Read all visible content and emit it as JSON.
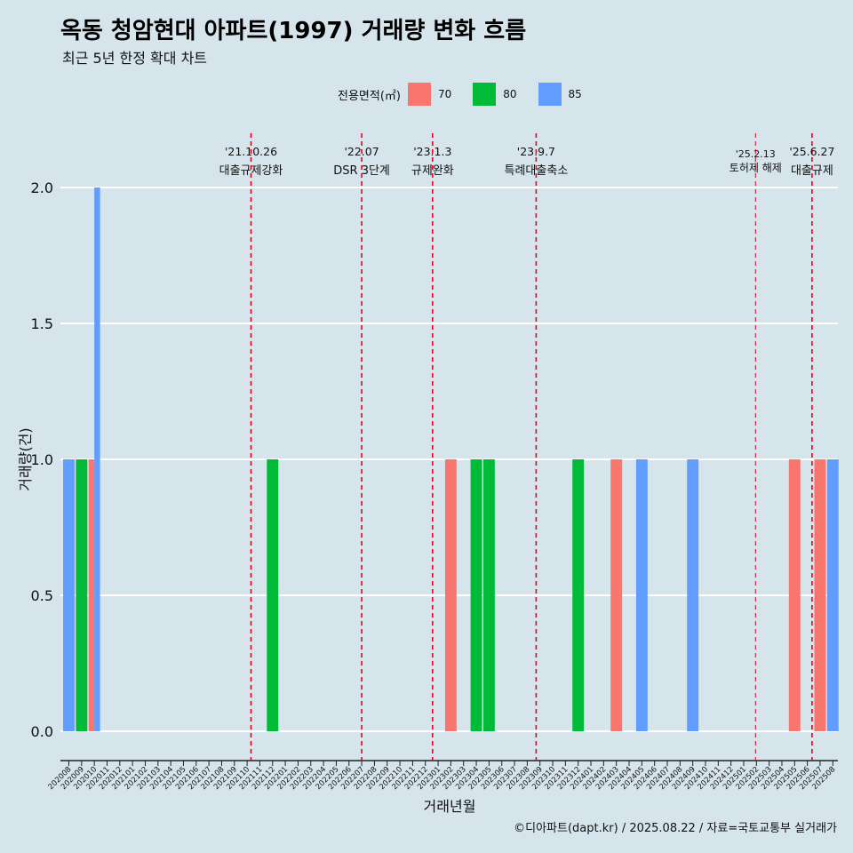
{
  "title": "옥동 청암현대 아파트(1997) 거래량 변화 흐름",
  "subtitle": "최근 5년 한정 확대 차트",
  "caption": "©디아파트(dapt.kr) / 2025.08.22 / 자료=국토교통부 실거래가",
  "legend": {
    "title": "전용면적(㎡)",
    "items": [
      {
        "label": "70",
        "color": "#f8766d"
      },
      {
        "label": "80",
        "color": "#00ba38"
      },
      {
        "label": "85",
        "color": "#619cff"
      }
    ]
  },
  "chart_data": {
    "type": "bar",
    "xlabel": "거래년월",
    "ylabel": "거래량(건)",
    "ylim": [
      0,
      2
    ],
    "yticks": [
      "0.0",
      "0.5",
      "1.0",
      "1.5",
      "2.0"
    ],
    "categories": [
      "202008",
      "202009",
      "202010",
      "202011",
      "202012",
      "202101",
      "202102",
      "202103",
      "202104",
      "202105",
      "202106",
      "202107",
      "202108",
      "202109",
      "202110",
      "202111",
      "202112",
      "202201",
      "202202",
      "202203",
      "202204",
      "202205",
      "202206",
      "202207",
      "202208",
      "202209",
      "202210",
      "202211",
      "202212",
      "202301",
      "202302",
      "202303",
      "202304",
      "202305",
      "202306",
      "202307",
      "202308",
      "202309",
      "202310",
      "202311",
      "202312",
      "202401",
      "202402",
      "202403",
      "202404",
      "202405",
      "202406",
      "202407",
      "202408",
      "202409",
      "202410",
      "202411",
      "202412",
      "202501",
      "202502",
      "202503",
      "202504",
      "202505",
      "202506",
      "202507",
      "202508"
    ],
    "bars": [
      {
        "month": "202008",
        "area": "85",
        "value": 1
      },
      {
        "month": "202009",
        "area": "80",
        "value": 1
      },
      {
        "month": "202010",
        "area": "70",
        "value": 1
      },
      {
        "month": "202010",
        "area": "85",
        "value": 2
      },
      {
        "month": "202112",
        "area": "80",
        "value": 1
      },
      {
        "month": "202302",
        "area": "70",
        "value": 1
      },
      {
        "month": "202304",
        "area": "80",
        "value": 1
      },
      {
        "month": "202305",
        "area": "80",
        "value": 1
      },
      {
        "month": "202312",
        "area": "80",
        "value": 1
      },
      {
        "month": "202403",
        "area": "70",
        "value": 1
      },
      {
        "month": "202405",
        "area": "85",
        "value": 1
      },
      {
        "month": "202409",
        "area": "85",
        "value": 1
      },
      {
        "month": "202505",
        "area": "70",
        "value": 1
      },
      {
        "month": "202507",
        "area": "70",
        "value": 1
      },
      {
        "month": "202508",
        "area": "85",
        "value": 1
      }
    ],
    "annotations": [
      {
        "date": "'21.10.26",
        "text": "대출규제강화",
        "position": "2021-10-26"
      },
      {
        "date": "'22.07",
        "text": "DSR 3단계",
        "position": "2022-07"
      },
      {
        "date": "'23.1.3",
        "text": "규제완화",
        "position": "2023-01-03"
      },
      {
        "date": "'23.9.7",
        "text": "특례대출축소",
        "position": "2023-09-07"
      },
      {
        "date": "'25.2.13",
        "text": "토허제 해제",
        "position": "2025-02-13"
      },
      {
        "date": "'25.6.27",
        "text": "대출규제",
        "position": "2025-06-27"
      }
    ]
  }
}
